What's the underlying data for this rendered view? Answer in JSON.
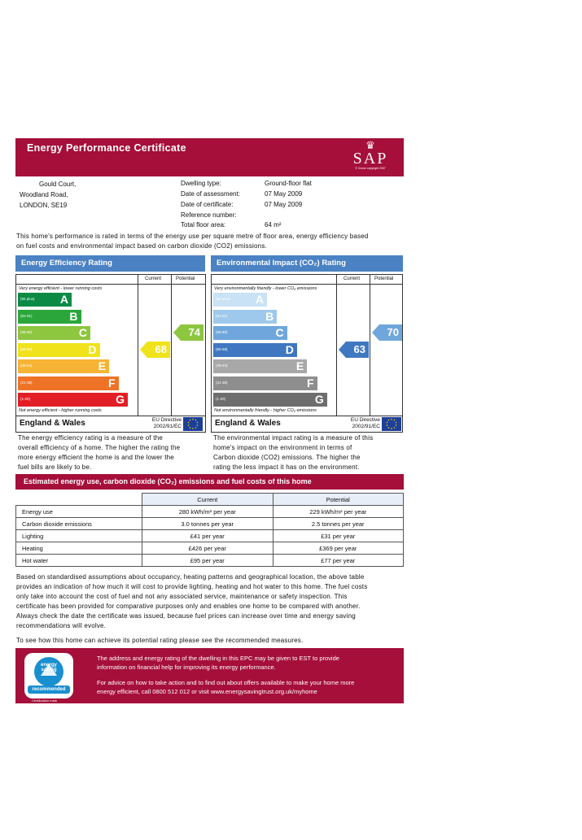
{
  "header": {
    "title": "Energy Performance Certificate",
    "logo_word": "SAP",
    "logo_copyright": "© Crown copyright 2007"
  },
  "address": {
    "line1": "Gould Court,",
    "line2": "Woodland Road,",
    "line3": "LONDON, SE19"
  },
  "details": {
    "dwelling_type_label": "Dwelling type:",
    "dwelling_type": "Ground-floor flat",
    "date_assessment_label": "Date of assessment:",
    "date_assessment": "07 May 2009",
    "date_certificate_label": "Date of certificate:",
    "date_certificate": "07 May 2009",
    "reference_label": "Reference number:",
    "reference": "",
    "floor_area_label": "Total floor area:",
    "floor_area": "64 m²"
  },
  "intro": {
    "line1": "This home's performance is rated in terms of the energy use per square metre of floor area, energy efficiency based",
    "line2": "on fuel costs and environmental impact based on carbon dioxide (CO2) emissions."
  },
  "efficiency": {
    "title": "Energy Efficiency Rating",
    "col_current": "Current",
    "col_potential": "Potential",
    "top_caption": "Very energy efficient - lower running costs",
    "bottom_caption": "Not energy efficient - higher running costs",
    "bands": [
      {
        "range": "(92 plus)",
        "letter": "A",
        "color": "#0a8a44"
      },
      {
        "range": "(81-91)",
        "letter": "B",
        "color": "#2aa63b"
      },
      {
        "range": "(69-80)",
        "letter": "C",
        "color": "#8dc63f"
      },
      {
        "range": "(55-68)",
        "letter": "D",
        "color": "#f1e31b"
      },
      {
        "range": "(39-54)",
        "letter": "E",
        "color": "#f7b334"
      },
      {
        "range": "(21-38)",
        "letter": "F",
        "color": "#ee7326"
      },
      {
        "range": "(1-20)",
        "letter": "G",
        "color": "#e21f26"
      }
    ],
    "current": "68",
    "current_color": "#f1e31b",
    "potential": "74",
    "potential_color": "#8dc63f",
    "region": "England & Wales",
    "directive": "EU Directive",
    "directive_no": "2002/91/EC",
    "desc": [
      "The energy efficiency rating is a measure of the",
      "overall efficiency of a home. The higher the rating the",
      "more energy efficient the home is and the lower the",
      "fuel bills are likely to be."
    ]
  },
  "environment": {
    "title": "Environmental Impact (CO₂) Rating",
    "col_current": "Current",
    "col_potential": "Potential",
    "top_caption": "Very environmentally friendly - lower CO₂ emissions",
    "bottom_caption": "Not environmentally friendly - higher CO₂ emissions",
    "bands": [
      {
        "range": "(92 plus)",
        "letter": "A",
        "color": "#c9e2f5"
      },
      {
        "range": "(81-91)",
        "letter": "B",
        "color": "#9fc9ec"
      },
      {
        "range": "(69-80)",
        "letter": "C",
        "color": "#6fa7dc"
      },
      {
        "range": "(55-68)",
        "letter": "D",
        "color": "#3f78c0"
      },
      {
        "range": "(39-54)",
        "letter": "E",
        "color": "#a8a8a8"
      },
      {
        "range": "(21-38)",
        "letter": "F",
        "color": "#8e8e8e"
      },
      {
        "range": "(1-20)",
        "letter": "G",
        "color": "#6e6e6e"
      }
    ],
    "current": "63",
    "current_color": "#3f78c0",
    "potential": "70",
    "potential_color": "#6fa7dc",
    "region": "England & Wales",
    "directive": "EU Directive",
    "directive_no": "2002/91/EC",
    "desc": [
      "The environmental impact rating is a measure of this",
      "home's impact on the environment in terms of",
      "Carbon dioxide (CO2) emissions. The higher the",
      "rating the less impact it has on the environment."
    ]
  },
  "costs": {
    "title": "Estimated energy use, carbon dioxide (CO₂) emissions and fuel costs of this home",
    "col_current": "Current",
    "col_potential": "Potential",
    "rows": [
      {
        "label": "Energy use",
        "current": "280 kWh/m² per year",
        "potential": "229 kWh/m² per year"
      },
      {
        "label": "Carbon dioxide emissions",
        "current": "3.0 tonnes per year",
        "potential": "2.5 tonnes per year"
      },
      {
        "label": "Lighting",
        "current": "£41 per year",
        "potential": "£31 per year"
      },
      {
        "label": "Heating",
        "current": "£426 per year",
        "potential": "£369 per year"
      },
      {
        "label": "Hot water",
        "current": "£95 per year",
        "potential": "£77 per year"
      }
    ]
  },
  "notes": {
    "lines": [
      "Based on standardised assumptions about occupancy, heating patterns and geographical location, the above table",
      "provides an indication of how much it will cost to provide lighting, heating and hot water to this home. The fuel costs",
      "only take into account the cost of fuel and not any associated service, maintenance or safety inspection. This",
      "certificate has been provided for comparative purposes only and enables one home to be compared with another.",
      "Always check the date the certificate was issued, because fuel prices can increase over time and energy saving",
      "recommendations will evolve."
    ],
    "potential_line": "To see how this home can achieve its potential rating please see the recommended measures."
  },
  "footer": {
    "line1": "The address and energy rating of the dwelling in this EPC may be given to EST to provide",
    "line2": "information on financial help for improving its energy performance.",
    "line3": "For advice on how to take action and to find out about offers available to make your home more",
    "line4": "energy efficient, call 0800 512 012 or visit www.energysavingtrust.org.uk/myhome",
    "logo_top": "energy saving",
    "logo_bottom": "recommended",
    "logo_caption": "Certification mark"
  }
}
